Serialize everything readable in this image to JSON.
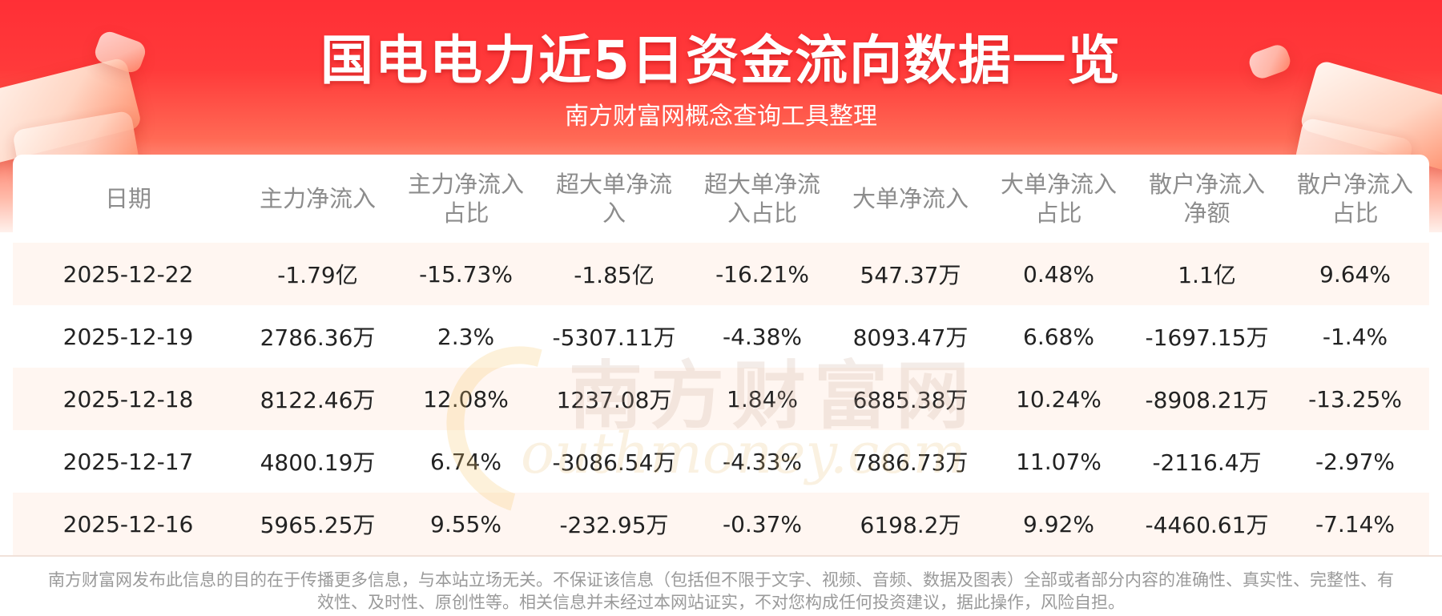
{
  "header": {
    "title": "国电电力近5日资金流向数据一览",
    "subtitle": "南方财富网概念查询工具整理"
  },
  "table": {
    "columns": [
      "日期",
      "主力净流入",
      "主力净流入\n占比",
      "超大单净流\n入",
      "超大单净流\n入占比",
      "大单净流入",
      "大单净流入\n占比",
      "散户净流入\n净额",
      "散户净流入\n占比"
    ],
    "rows": [
      [
        "2025-12-22",
        "-1.79亿",
        "-15.73%",
        "-1.85亿",
        "-16.21%",
        "547.37万",
        "0.48%",
        "1.1亿",
        "9.64%"
      ],
      [
        "2025-12-19",
        "2786.36万",
        "2.3%",
        "-5307.11万",
        "-4.38%",
        "8093.47万",
        "6.68%",
        "-1697.15万",
        "-1.4%"
      ],
      [
        "2025-12-18",
        "8122.46万",
        "12.08%",
        "1237.08万",
        "1.84%",
        "6885.38万",
        "10.24%",
        "-8908.21万",
        "-13.25%"
      ],
      [
        "2025-12-17",
        "4800.19万",
        "6.74%",
        "-3086.54万",
        "-4.33%",
        "7886.73万",
        "11.07%",
        "-2116.4万",
        "-2.97%"
      ],
      [
        "2025-12-16",
        "5965.25万",
        "9.55%",
        "-232.95万",
        "-0.37%",
        "6198.2万",
        "9.92%",
        "-4460.61万",
        "-7.14%"
      ]
    ]
  },
  "watermark": {
    "cn": "南方财富网",
    "en": "outhmoney.com"
  },
  "footer": {
    "disclaimer": "南方财富网发布此信息的目的在于传播更多信息，与本站立场无关。不保证该信息（包括但不限于文字、视频、音频、数据及图表）全部或者部分内容的准确性、真实性、完整性、有效性、及时性、原创性等。相关信息并未经过本网站证实，不对您构成任何投资建议，据此操作，风险自担。"
  },
  "colors": {
    "banner_red": "#ff2f36",
    "stripe": "#fff6f1",
    "header_text": "#8c8c8c"
  }
}
